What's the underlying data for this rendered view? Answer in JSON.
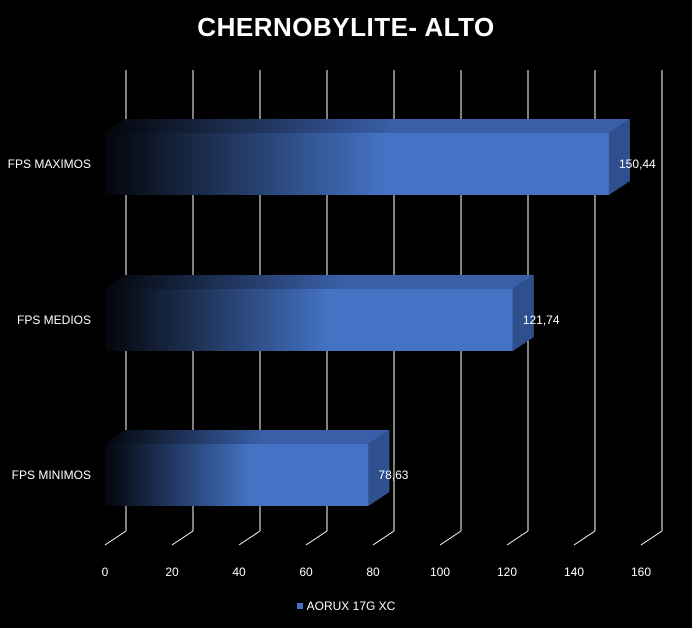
{
  "chart_data": {
    "type": "bar",
    "orientation": "horizontal",
    "title": "CHERNOBYLITE- ALTO",
    "categories": [
      "FPS MAXIMOS",
      "FPS MEDIOS",
      "FPS MINIMOS"
    ],
    "series": [
      {
        "name": "AORUX 17G XC",
        "values": [
          150.44,
          121.74,
          78.63
        ],
        "data_labels": [
          "150,44",
          "121,74",
          "78,63"
        ]
      }
    ],
    "x_ticks": [
      "0",
      "20",
      "40",
      "60",
      "80",
      "100",
      "120",
      "140",
      "160"
    ],
    "xlim": [
      0,
      160
    ],
    "grid": true,
    "legend_position": "bottom",
    "three_d": true
  },
  "colors": {
    "background": "#000000",
    "bar_front": "#4472c4",
    "bar_top": "#3a5fa8",
    "bar_side": "#2f4f8f",
    "grid": "#ffffff",
    "text": "#ffffff"
  }
}
